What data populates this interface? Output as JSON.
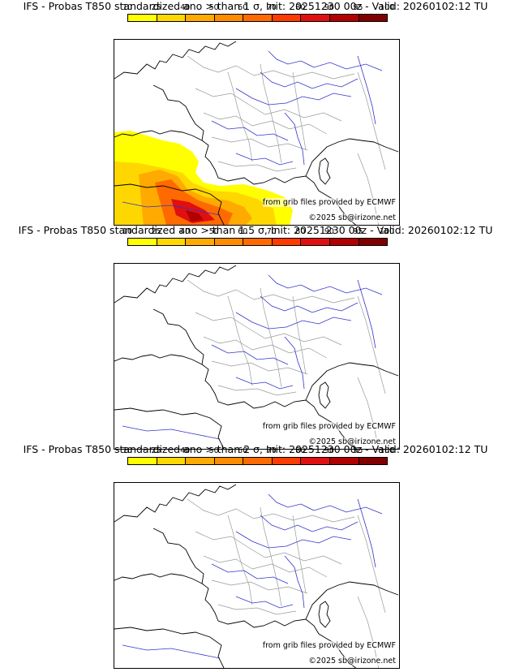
{
  "panels": [
    {
      "title": "IFS - Probas T850  standardized ano > than 1 σ, Init: 20251230 00z - Valid: 20260102:12 TU",
      "has_anomaly": true
    },
    {
      "title": "IFS - Probas T850  standardized ano > than 1.5 σ, Init: 20251230 00z - Valid: 20260102:12 TU",
      "has_anomaly": false
    },
    {
      "title": "IFS - Probas T850  standardized ano > than 2 σ, Init: 20251230 00z - Valid: 20260102:12 TU",
      "has_anomaly": false
    }
  ],
  "colorbar": {
    "ticks": [
      "10",
      "25",
      "40",
      "50",
      "60",
      "70",
      "80",
      "90",
      "95",
      "100"
    ],
    "colors": [
      "#ffff00",
      "#ffd700",
      "#ffaa00",
      "#ff8c00",
      "#ff6a00",
      "#ff3c00",
      "#e01010",
      "#b00000",
      "#800000"
    ]
  },
  "credits": {
    "source": "from grib files provided by ECMWF",
    "copyright": "©2025 sb@irizone.net"
  },
  "colors": {
    "coast": "#000000",
    "rivers": "#3333cc",
    "borders": "#999999"
  }
}
